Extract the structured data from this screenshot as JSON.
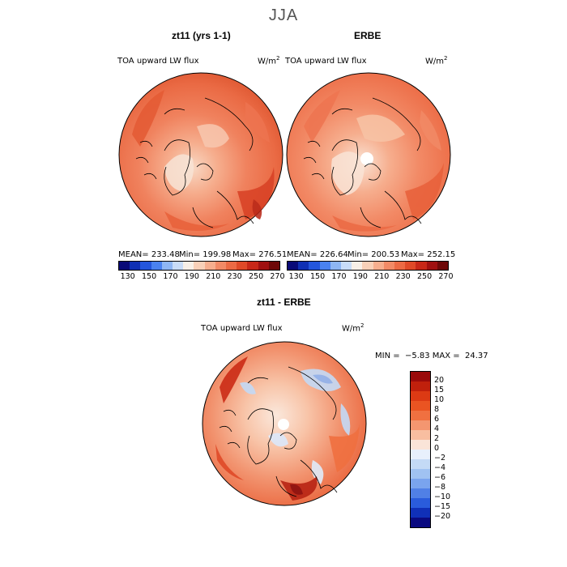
{
  "season": "JJA",
  "top_left": {
    "title": "zt11 (yrs 1-1)",
    "variable": "TOA upward LW flux",
    "unit": "W/m",
    "unit_exp": "2",
    "mean": "MEAN= 233.48",
    "min": "Min= 199.98",
    "max": "Max= 276.51"
  },
  "top_right": {
    "title": "ERBE",
    "variable": "TOA upward LW flux",
    "unit": "W/m",
    "unit_exp": "2",
    "mean": "MEAN= 226.64",
    "min": "Min= 200.53",
    "max": "Max= 252.15"
  },
  "abs_colorbar": {
    "colors": [
      "#0a0a78",
      "#1030b4",
      "#2456dc",
      "#4a82f0",
      "#8eb6f4",
      "#c8dcf8",
      "#f7efe7",
      "#f8d0b8",
      "#f6ae8e",
      "#f28a66",
      "#ec6a44",
      "#e04a28",
      "#c82818",
      "#a01010",
      "#6e0808"
    ],
    "ticks": [
      "130",
      "150",
      "170",
      "190",
      "210",
      "230",
      "250",
      "270"
    ]
  },
  "diff": {
    "title": "zt11 - ERBE",
    "variable": "TOA upward LW flux",
    "unit": "W/m",
    "unit_exp": "2",
    "minmax": "MIN =  −5.83 MAX =  24.37"
  },
  "diff_colorbar": {
    "colors": [
      "#9a0a0a",
      "#c0200c",
      "#dc3a14",
      "#ea5422",
      "#f07040",
      "#f49670",
      "#f8bea0",
      "#fae4d8",
      "#e8f0fc",
      "#c4daf6",
      "#a0c2f2",
      "#7aa4ee",
      "#5080e6",
      "#2a5cdc",
      "#1030b8",
      "#0a0a80"
    ],
    "ticks": [
      "20",
      "15",
      "10",
      "8",
      "6",
      "4",
      "2",
      "0",
      "−2",
      "−4",
      "−6",
      "−8",
      "−10",
      "−15",
      "−20"
    ]
  }
}
